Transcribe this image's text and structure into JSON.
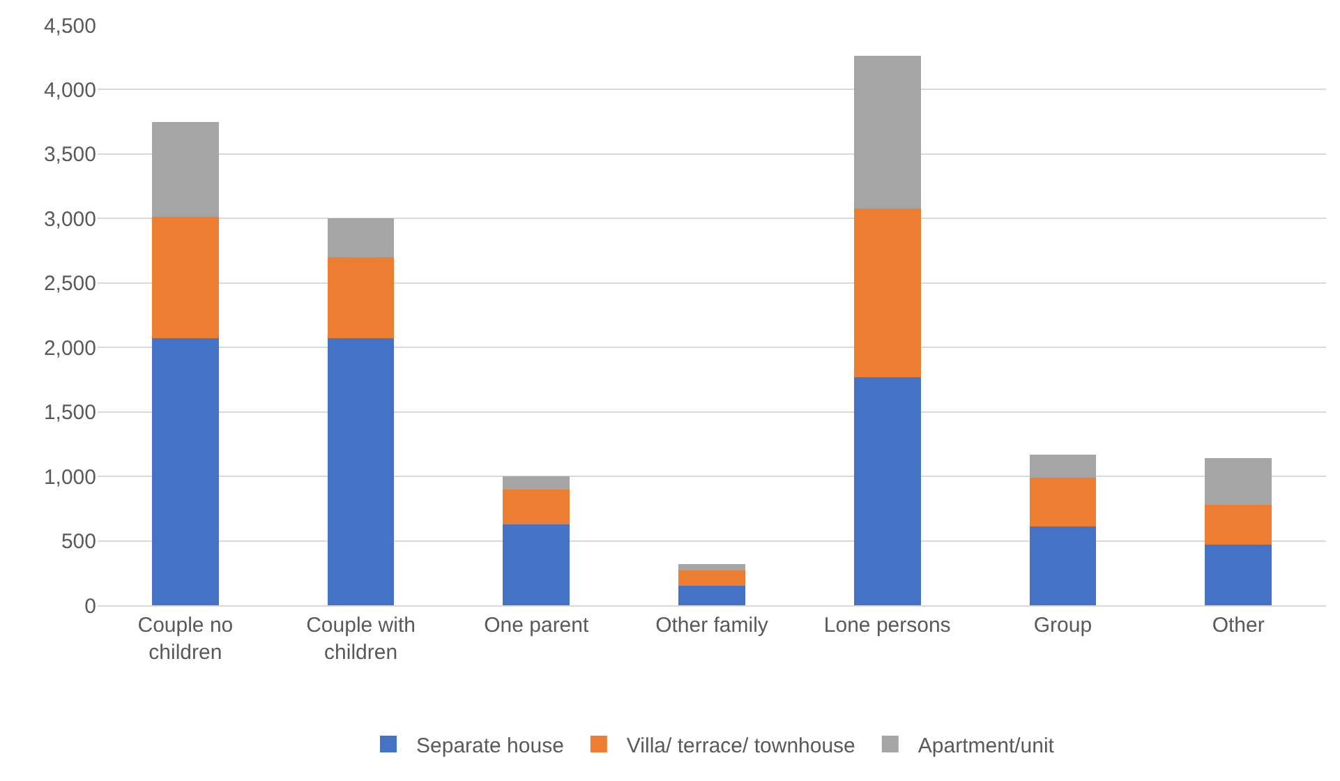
{
  "chart_data": {
    "type": "bar",
    "stacked": true,
    "categories": [
      "Couple no children",
      "Couple with children",
      "One parent",
      "Other family",
      "Lone persons",
      "Group",
      "Other"
    ],
    "series": [
      {
        "name": "Separate house",
        "color": "#4472c4",
        "values": [
          2070,
          2070,
          630,
          150,
          1770,
          610,
          470
        ]
      },
      {
        "name": "Villa/ terrace/ townhouse",
        "color": "#ed7d31",
        "values": [
          940,
          630,
          270,
          120,
          1310,
          380,
          310
        ]
      },
      {
        "name": "Apartment/unit",
        "color": "#a5a5a5",
        "values": [
          740,
          300,
          100,
          50,
          1180,
          180,
          360
        ]
      }
    ],
    "ylim": [
      0,
      4500
    ],
    "yticks": [
      {
        "value": 0,
        "label": "0"
      },
      {
        "value": 500,
        "label": "500"
      },
      {
        "value": 1000,
        "label": "1,000"
      },
      {
        "value": 1500,
        "label": "1,500"
      },
      {
        "value": 2000,
        "label": "2,000"
      },
      {
        "value": 2500,
        "label": "2,500"
      },
      {
        "value": 3000,
        "label": "3,000"
      },
      {
        "value": 3500,
        "label": "3,500"
      },
      {
        "value": 4000,
        "label": "4,000"
      },
      {
        "value": 4500,
        "label": "4,500"
      }
    ],
    "grid": "y",
    "legend": "bottom"
  }
}
